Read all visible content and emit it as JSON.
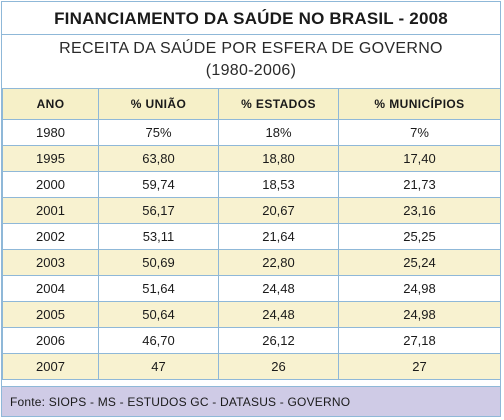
{
  "title": "FINANCIAMENTO DA SAÚDE NO BRASIL - 2008",
  "subtitle_line1": "RECEITA DA SAÚDE POR ESFERA DE GOVERNO",
  "subtitle_line2": "(1980-2006)",
  "table": {
    "headers": [
      "ANO",
      "% UNIÃO",
      "% ESTADOS",
      "% MUNICÍPIOS"
    ],
    "rows": [
      [
        "1980",
        "75%",
        "18%",
        "7%"
      ],
      [
        "1995",
        "63,80",
        "18,80",
        "17,40"
      ],
      [
        "2000",
        "59,74",
        "18,53",
        "21,73"
      ],
      [
        "2001",
        "56,17",
        "20,67",
        "23,16"
      ],
      [
        "2002",
        "53,11",
        "21,64",
        "25,25"
      ],
      [
        "2003",
        "50,69",
        "22,80",
        "25,24"
      ],
      [
        "2004",
        "51,64",
        "24,48",
        "24,98"
      ],
      [
        "2005",
        "50,64",
        "24,48",
        "24,98"
      ],
      [
        "2006",
        "46,70",
        "26,12",
        "27,18"
      ],
      [
        "2007",
        "47",
        "26",
        "27"
      ]
    ]
  },
  "footer": "Fonte: SIOPS - MS - ESTUDOS GC - DATASUS - GOVERNO",
  "colors": {
    "header_bg": "#f6f0c8",
    "alt_row_bg": "#f8f2d0",
    "footer_bg": "#cfcbe6",
    "border": "#8fb8d8"
  }
}
